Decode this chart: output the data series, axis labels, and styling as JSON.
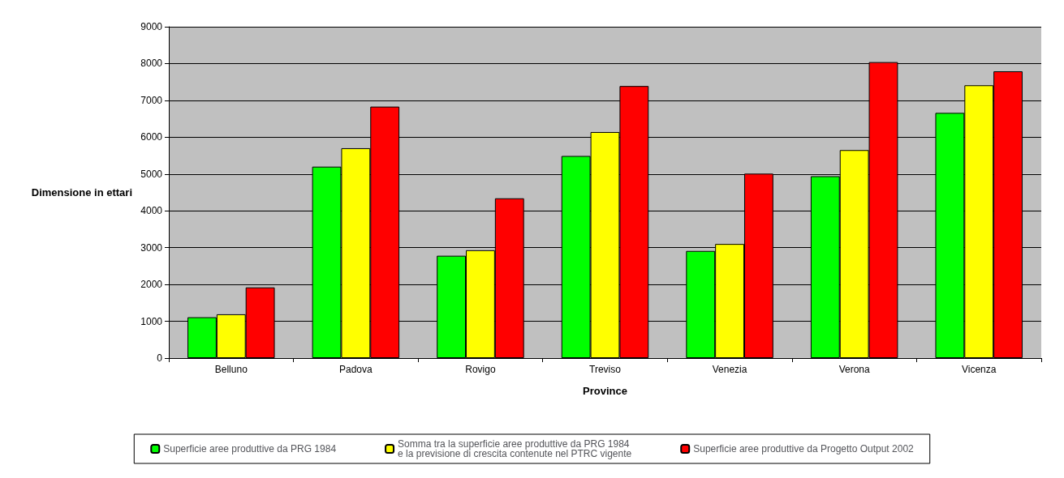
{
  "chart_data": {
    "type": "bar",
    "xlabel": "Province",
    "ylabel": "Dimensione in ettari",
    "categories": [
      "Belluno",
      "Padova",
      "Rovigo",
      "Treviso",
      "Venezia",
      "Verona",
      "Vicenza"
    ],
    "series": [
      {
        "name": "Superficie aree produttive da PRG 1984",
        "color": "#00ff00",
        "values": [
          1110,
          5200,
          2780,
          5490,
          2910,
          4940,
          6660
        ]
      },
      {
        "name": "Somma tra la superficie aree produttive da PRG 1984\ne la previsione di crescita contenute nel PTRC vigente",
        "color": "#ffff00",
        "values": [
          1190,
          5700,
          2930,
          6140,
          3100,
          5650,
          7410
        ]
      },
      {
        "name": "Superficie aree produttive da Progetto Output 2002",
        "color": "#ff0000",
        "values": [
          1920,
          6830,
          4340,
          7390,
          5010,
          8040,
          7790
        ]
      }
    ],
    "ylim": [
      0,
      9000
    ],
    "yticks": [
      0,
      1000,
      2000,
      3000,
      4000,
      5000,
      6000,
      7000,
      8000,
      9000
    ],
    "grid": "y",
    "legend": "bottom"
  }
}
